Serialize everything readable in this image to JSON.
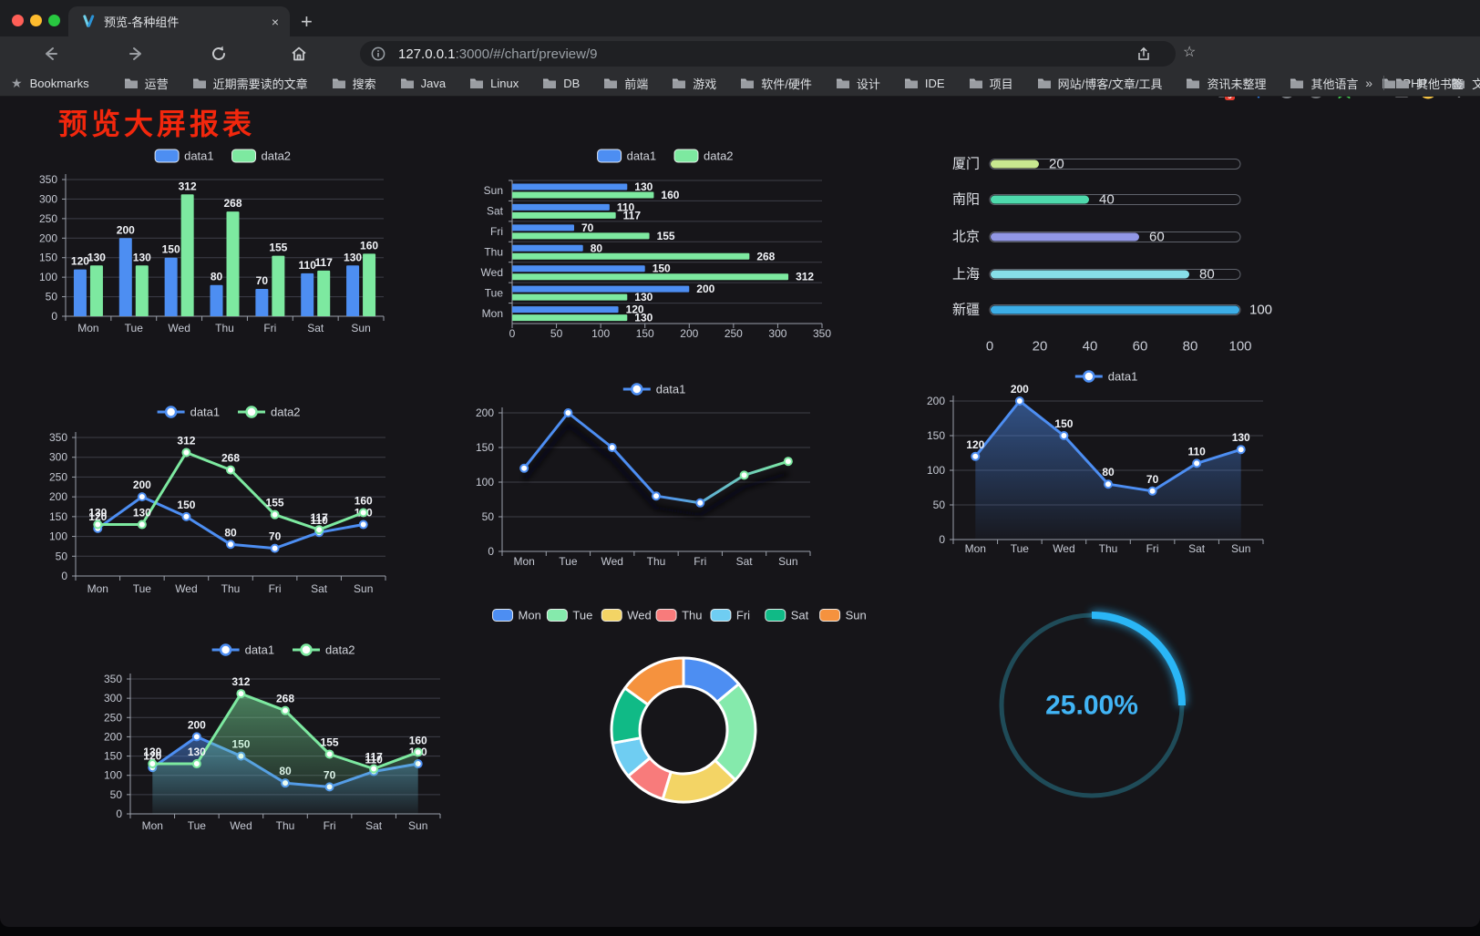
{
  "browser": {
    "tab_title": "预览-各种组件",
    "close_glyph": "×",
    "new_tab_glyph": "+",
    "url_host": "127.0.0.1",
    "url_rest": ":3000/#/chart/preview/9",
    "bookmarks_star_glyph": "★",
    "bookmarks_label": "Bookmarks",
    "bookmarks": [
      "运营",
      "近期需要读的文章",
      "搜索",
      "Java",
      "Linux",
      "DB",
      "前端",
      "游戏",
      "软件/硬件",
      "设计",
      "IDE",
      "项目",
      "网站/博客/文章/工具",
      "资讯未整理",
      "其他语言",
      "PHP",
      "文件服务器"
    ],
    "overflow_chevron": "»",
    "other_bookmarks": "其他书签",
    "omnibox_star_glyph": "☆",
    "extension_badge": "9"
  },
  "page": {
    "title": "预览大屏报表",
    "title_color": "#f2270d",
    "background": "#161519"
  },
  "chart_data": [
    {
      "id": "grouped-bar",
      "type": "bar",
      "categories": [
        "Mon",
        "Tue",
        "Wed",
        "Thu",
        "Fri",
        "Sat",
        "Sun"
      ],
      "series": [
        {
          "name": "data1",
          "color": "#4d8ef2",
          "values": [
            120,
            200,
            150,
            80,
            70,
            110,
            130
          ]
        },
        {
          "name": "data2",
          "color": "#7de9a0",
          "values": [
            130,
            130,
            312,
            268,
            155,
            117,
            160
          ]
        }
      ],
      "ylim": [
        0,
        350
      ],
      "ytick": 50,
      "legend_position": "top",
      "grid": true,
      "show_labels": true
    },
    {
      "id": "horizontal-bar",
      "type": "hbar",
      "categories": [
        "Mon",
        "Tue",
        "Wed",
        "Thu",
        "Fri",
        "Sat",
        "Sun"
      ],
      "series": [
        {
          "name": "data1",
          "color": "#4d8ef2",
          "values": [
            120,
            200,
            150,
            80,
            70,
            110,
            130
          ]
        },
        {
          "name": "data2",
          "color": "#7de9a0",
          "values": [
            130,
            130,
            312,
            268,
            155,
            117,
            160
          ]
        }
      ],
      "xlim": [
        0,
        350
      ],
      "xtick": 50,
      "legend_position": "top",
      "grid": true,
      "show_labels": true
    },
    {
      "id": "city-progress",
      "type": "progress",
      "max": 100,
      "items": [
        {
          "label": "厦门",
          "value": 20,
          "color": "#c8e88f"
        },
        {
          "label": "南阳",
          "value": 40,
          "color": "#4ed9ac"
        },
        {
          "label": "北京",
          "value": 60,
          "color": "#9197e5"
        },
        {
          "label": "上海",
          "value": 80,
          "color": "#87dfe8"
        },
        {
          "label": "新疆",
          "value": 100,
          "color": "#3cade6"
        }
      ],
      "xticks": [
        0,
        20,
        40,
        60,
        80,
        100
      ]
    },
    {
      "id": "two-series-line",
      "type": "line",
      "categories": [
        "Mon",
        "Tue",
        "Wed",
        "Thu",
        "Fri",
        "Sat",
        "Sun"
      ],
      "series": [
        {
          "name": "data1",
          "color": "#4d8ef2",
          "values": [
            120,
            200,
            150,
            80,
            70,
            110,
            130
          ]
        },
        {
          "name": "data2",
          "color": "#7de9a0",
          "values": [
            130,
            130,
            312,
            268,
            155,
            117,
            160
          ]
        }
      ],
      "ylim": [
        0,
        350
      ],
      "ytick": 50,
      "legend_position": "top",
      "grid": true,
      "show_labels": true
    },
    {
      "id": "gradient-line",
      "type": "line",
      "categories": [
        "Mon",
        "Tue",
        "Wed",
        "Thu",
        "Fri",
        "Sat",
        "Sun"
      ],
      "series": [
        {
          "name": "data1",
          "color": "#4d8ef2",
          "color_end": "#7de9a0",
          "values": [
            120,
            200,
            150,
            80,
            70,
            110,
            130
          ]
        }
      ],
      "ylim": [
        0,
        200
      ],
      "ytick": 50,
      "legend_position": "top",
      "grid": true,
      "show_labels": false,
      "shadow": true
    },
    {
      "id": "single-area",
      "type": "line",
      "categories": [
        "Mon",
        "Tue",
        "Wed",
        "Thu",
        "Fri",
        "Sat",
        "Sun"
      ],
      "series": [
        {
          "name": "data1",
          "color": "#4d8ef2",
          "area": true,
          "values": [
            120,
            200,
            150,
            80,
            70,
            110,
            130
          ]
        }
      ],
      "ylim": [
        0,
        200
      ],
      "ytick": 50,
      "legend_position": "top",
      "grid": true,
      "show_labels": true
    },
    {
      "id": "two-series-area",
      "type": "line",
      "categories": [
        "Mon",
        "Tue",
        "Wed",
        "Thu",
        "Fri",
        "Sat",
        "Sun"
      ],
      "series": [
        {
          "name": "data1",
          "color": "#4d8ef2",
          "area": true,
          "values": [
            120,
            200,
            150,
            80,
            70,
            110,
            130
          ]
        },
        {
          "name": "data2",
          "color": "#7de9a0",
          "area": true,
          "values": [
            130,
            130,
            312,
            268,
            155,
            117,
            160
          ]
        }
      ],
      "ylim": [
        0,
        350
      ],
      "ytick": 50,
      "legend_position": "top",
      "grid": true,
      "show_labels": true
    },
    {
      "id": "weekday-donut",
      "type": "pie",
      "items": [
        {
          "label": "Mon",
          "value": 120,
          "color": "#4d8ef2"
        },
        {
          "label": "Tue",
          "value": 200,
          "color": "#85eaac"
        },
        {
          "label": "Wed",
          "value": 150,
          "color": "#f3d465"
        },
        {
          "label": "Thu",
          "value": 80,
          "color": "#f87b7b"
        },
        {
          "label": "Fri",
          "value": 70,
          "color": "#6fcdf2"
        },
        {
          "label": "Sat",
          "value": 110,
          "color": "#10ba86"
        },
        {
          "label": "Sun",
          "value": 130,
          "color": "#f5923e"
        }
      ],
      "legend_position": "top",
      "donut": true
    },
    {
      "id": "percent-ring",
      "type": "ring",
      "value": 25,
      "max": 100,
      "label": "25.00%",
      "color": "#2ab6f6",
      "track_color": "#1f4b58",
      "label_color": "#41b4f5"
    }
  ]
}
